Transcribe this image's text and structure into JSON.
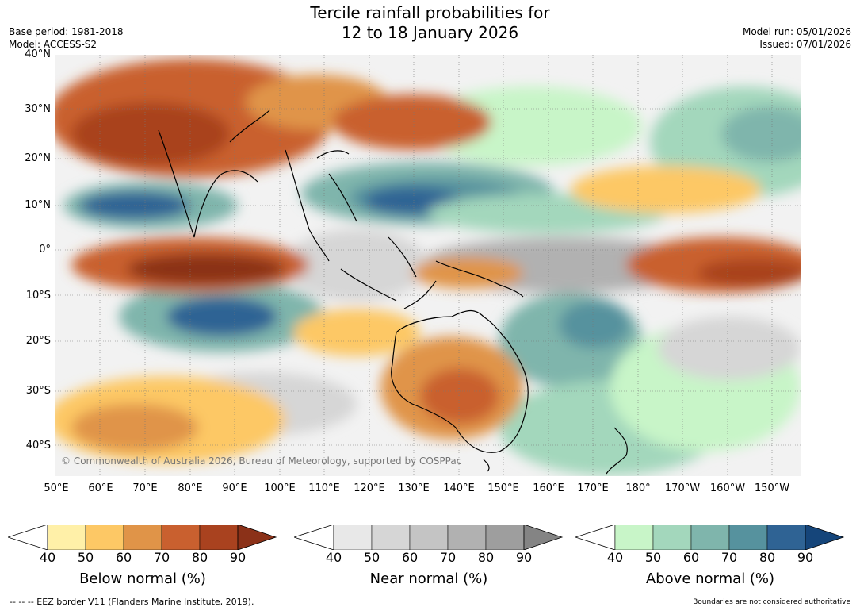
{
  "title": {
    "line1": "Tercile rainfall probabilities for",
    "line2": "12 to 18 January 2026"
  },
  "meta": {
    "base_period": "Base period: 1981-2018",
    "model": "Model: ACCESS-S2",
    "model_run": "Model run: 05/01/2026",
    "issued": "Issued: 07/01/2026"
  },
  "map": {
    "lat_labels": [
      "40°N",
      "30°N",
      "20°N",
      "10°N",
      "0°",
      "10°S",
      "20°S",
      "30°S",
      "40°S"
    ],
    "lon_labels": [
      "50°E",
      "60°E",
      "70°E",
      "80°E",
      "90°E",
      "100°E",
      "110°E",
      "120°E",
      "130°E",
      "140°E",
      "150°E",
      "160°E",
      "170°E",
      "180°",
      "170°W",
      "160°W",
      "150°W"
    ],
    "copyright": "© Commonwealth of Australia 2026, Bureau of Meteorology, supported by COSPPac"
  },
  "colorbars": [
    {
      "title": "Below normal (%)",
      "ticks": [
        "40",
        "50",
        "60",
        "70",
        "80",
        "90"
      ],
      "colors": [
        "#fff0a8",
        "#fdc865",
        "#e09448",
        "#c9602f",
        "#a9421f",
        "#8b3118"
      ]
    },
    {
      "title": "Near normal (%)",
      "ticks": [
        "40",
        "50",
        "60",
        "70",
        "80",
        "90"
      ],
      "colors": [
        "#e8e8e8",
        "#d6d6d6",
        "#c4c4c4",
        "#b1b1b1",
        "#9e9e9e",
        "#848484"
      ]
    },
    {
      "title": "Above normal (%)",
      "ticks": [
        "40",
        "50",
        "60",
        "70",
        "80",
        "90"
      ],
      "colors": [
        "#c8f5c8",
        "#a3d7bc",
        "#7fb5ac",
        "#56929e",
        "#2f6394",
        "#15457a"
      ]
    }
  ],
  "footer": {
    "left": "--  --  -- EEZ border V11 (Flanders Marine Institute, 2019).",
    "right": "Boundaries are not considered authoritative"
  }
}
